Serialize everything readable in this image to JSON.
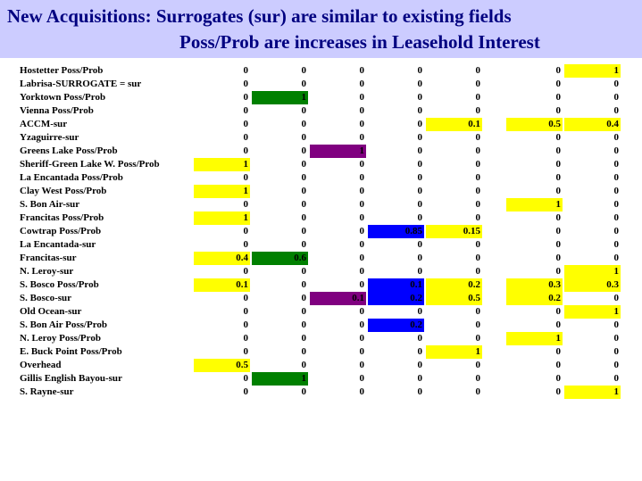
{
  "title": {
    "line1": "New Acquisitions:  Surrogates (sur) are similar to existing fields",
    "line2": "Poss/Prob are increases in Leasehold Interest"
  },
  "colors": {
    "yellow": "#ffff00",
    "green": "#008000",
    "purple": "#800080",
    "blue": "#0000ff",
    "title_band": "#ccccff",
    "title_text": "#000080"
  },
  "rows": [
    {
      "label": "Hostetter Poss/Prob",
      "values": [
        "0",
        "0",
        "0",
        "0",
        "0",
        "0",
        "1"
      ],
      "highlights": [
        "",
        "",
        "",
        "",
        "",
        "",
        "yellow"
      ]
    },
    {
      "label": "Labrisa-SURROGATE =  sur",
      "values": [
        "0",
        "0",
        "0",
        "0",
        "0",
        "0",
        "0"
      ],
      "highlights": [
        "",
        "",
        "",
        "",
        "",
        "",
        ""
      ]
    },
    {
      "label": "Yorktown Poss/Prob",
      "values": [
        "0",
        "1",
        "0",
        "0",
        "0",
        "0",
        "0"
      ],
      "highlights": [
        "",
        "green",
        "",
        "",
        "",
        "",
        ""
      ]
    },
    {
      "label": "Vienna Poss/Prob",
      "values": [
        "0",
        "0",
        "0",
        "0",
        "0",
        "0",
        "0"
      ],
      "highlights": [
        "",
        "",
        "",
        "",
        "",
        "",
        ""
      ]
    },
    {
      "label": "ACCM-sur",
      "values": [
        "0",
        "0",
        "0",
        "0",
        "0.1",
        "0.5",
        "0.4"
      ],
      "highlights": [
        "",
        "",
        "",
        "",
        "yellow",
        "yellow",
        "yellow"
      ]
    },
    {
      "label": "Yzaguirre-sur",
      "values": [
        "0",
        "0",
        "0",
        "0",
        "0",
        "0",
        "0"
      ],
      "highlights": [
        "",
        "",
        "",
        "",
        "",
        "",
        ""
      ]
    },
    {
      "label": "Greens Lake Poss/Prob",
      "values": [
        "0",
        "0",
        "1",
        "0",
        "0",
        "0",
        "0"
      ],
      "highlights": [
        "",
        "",
        "purple",
        "",
        "",
        "",
        ""
      ]
    },
    {
      "label": "Sheriff-Green Lake W. Poss/Prob",
      "values": [
        "1",
        "0",
        "0",
        "0",
        "0",
        "0",
        "0"
      ],
      "highlights": [
        "yellow",
        "",
        "",
        "",
        "",
        "",
        ""
      ]
    },
    {
      "label": "La Encantada Poss/Prob",
      "values": [
        "0",
        "0",
        "0",
        "0",
        "0",
        "0",
        "0"
      ],
      "highlights": [
        "",
        "",
        "",
        "",
        "",
        "",
        ""
      ]
    },
    {
      "label": "Clay West Poss/Prob",
      "values": [
        "1",
        "0",
        "0",
        "0",
        "0",
        "0",
        "0"
      ],
      "highlights": [
        "yellow",
        "",
        "",
        "",
        "",
        "",
        ""
      ]
    },
    {
      "label": "S. Bon Air-sur",
      "values": [
        "0",
        "0",
        "0",
        "0",
        "0",
        "1",
        "0"
      ],
      "highlights": [
        "",
        "",
        "",
        "",
        "",
        "yellow",
        ""
      ]
    },
    {
      "label": "Francitas Poss/Prob",
      "values": [
        "1",
        "0",
        "0",
        "0",
        "0",
        "0",
        "0"
      ],
      "highlights": [
        "yellow",
        "",
        "",
        "",
        "",
        "",
        ""
      ]
    },
    {
      "label": "Cowtrap Poss/Prob",
      "values": [
        "0",
        "0",
        "0",
        "0.85",
        "0.15",
        "0",
        "0"
      ],
      "highlights": [
        "",
        "",
        "",
        "blue",
        "yellow",
        "",
        ""
      ]
    },
    {
      "label": "La Encantada-sur",
      "values": [
        "0",
        "0",
        "0",
        "0",
        "0",
        "0",
        "0"
      ],
      "highlights": [
        "",
        "",
        "",
        "",
        "",
        "",
        ""
      ]
    },
    {
      "label": "Francitas-sur",
      "values": [
        "0.4",
        "0.6",
        "0",
        "0",
        "0",
        "0",
        "0"
      ],
      "highlights": [
        "yellow",
        "green",
        "",
        "",
        "",
        "",
        ""
      ]
    },
    {
      "label": "N. Leroy-sur",
      "values": [
        "0",
        "0",
        "0",
        "0",
        "0",
        "0",
        "1"
      ],
      "highlights": [
        "",
        "",
        "",
        "",
        "",
        "",
        "yellow"
      ]
    },
    {
      "label": "S. Bosco Poss/Prob",
      "values": [
        "0.1",
        "0",
        "0",
        "0.1",
        "0.2",
        "0.3",
        "0.3"
      ],
      "highlights": [
        "yellow",
        "",
        "",
        "blue",
        "yellow",
        "yellow",
        "yellow"
      ]
    },
    {
      "label": "S. Bosco-sur",
      "values": [
        "0",
        "0",
        "0.1",
        "0.2",
        "0.5",
        "0.2",
        "0"
      ],
      "highlights": [
        "",
        "",
        "purple",
        "blue",
        "yellow",
        "yellow",
        ""
      ]
    },
    {
      "label": "Old Ocean-sur",
      "values": [
        "0",
        "0",
        "0",
        "0",
        "0",
        "0",
        "1"
      ],
      "highlights": [
        "",
        "",
        "",
        "",
        "",
        "",
        "yellow"
      ]
    },
    {
      "label": "S. Bon Air Poss/Prob",
      "values": [
        "0",
        "0",
        "0",
        "0.2",
        "0",
        "0",
        "0"
      ],
      "highlights": [
        "",
        "",
        "",
        "blue",
        "",
        "",
        ""
      ]
    },
    {
      "label": "N. Leroy Poss/Prob",
      "values": [
        "0",
        "0",
        "0",
        "0",
        "0",
        "1",
        "0"
      ],
      "highlights": [
        "",
        "",
        "",
        "",
        "",
        "yellow",
        ""
      ]
    },
    {
      "label": "E. Buck Point Poss/Prob",
      "values": [
        "0",
        "0",
        "0",
        "0",
        "1",
        "0",
        "0"
      ],
      "highlights": [
        "",
        "",
        "",
        "",
        "yellow",
        "",
        ""
      ]
    },
    {
      "label": "Overhead",
      "values": [
        "0.5",
        "0",
        "0",
        "0",
        "0",
        "0",
        "0"
      ],
      "highlights": [
        "yellow",
        "",
        "",
        "",
        "",
        "",
        ""
      ]
    },
    {
      "label": "Gillis English Bayou-sur",
      "values": [
        "0",
        "1",
        "0",
        "0",
        "0",
        "0",
        "0"
      ],
      "highlights": [
        "",
        "green",
        "",
        "",
        "",
        "",
        ""
      ]
    },
    {
      "label": "S. Rayne-sur",
      "values": [
        "0",
        "0",
        "0",
        "0",
        "0",
        "0",
        "1"
      ],
      "highlights": [
        "",
        "",
        "",
        "",
        "",
        "",
        "yellow"
      ]
    }
  ]
}
